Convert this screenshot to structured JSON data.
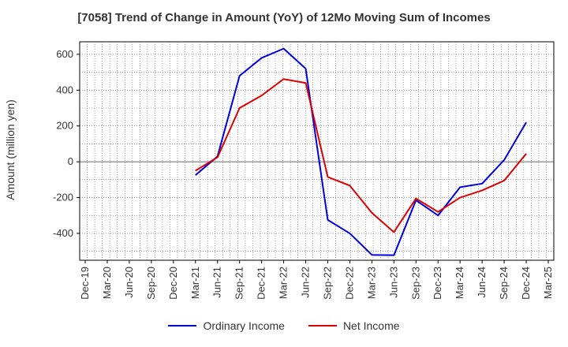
{
  "chart_data": {
    "type": "line",
    "title": "[7058]  Trend of Change in Amount (YoY) of 12Mo Moving Sum of Incomes",
    "ylabel": "Amount (million yen)",
    "xlabel": "",
    "ylim": [
      -550,
      670
    ],
    "yticks": [
      600,
      400,
      200,
      0,
      -200,
      -400
    ],
    "categories": [
      "Dec-19",
      "Mar-20",
      "Jun-20",
      "Sep-20",
      "Dec-20",
      "Mar-21",
      "Jun-21",
      "Sep-21",
      "Dec-21",
      "Mar-22",
      "Jun-22",
      "Sep-22",
      "Dec-22",
      "Mar-23",
      "Jun-23",
      "Sep-23",
      "Dec-23",
      "Mar-24",
      "Jun-24",
      "Sep-24",
      "Dec-24",
      "Mar-25"
    ],
    "grid": true,
    "legend_position": "bottom",
    "series": [
      {
        "name": "Ordinary Income",
        "color": "#0000dd",
        "values": [
          null,
          null,
          null,
          null,
          null,
          -75,
          30,
          480,
          580,
          632,
          520,
          -325,
          -400,
          -520,
          -522,
          -215,
          -300,
          -142,
          -122,
          10,
          220,
          null
        ]
      },
      {
        "name": "Net Income",
        "color": "#dd0000",
        "values": [
          null,
          null,
          null,
          null,
          null,
          -50,
          25,
          300,
          370,
          462,
          440,
          -85,
          -133,
          -285,
          -393,
          -205,
          -280,
          -200,
          -160,
          -105,
          45,
          null
        ]
      }
    ]
  }
}
